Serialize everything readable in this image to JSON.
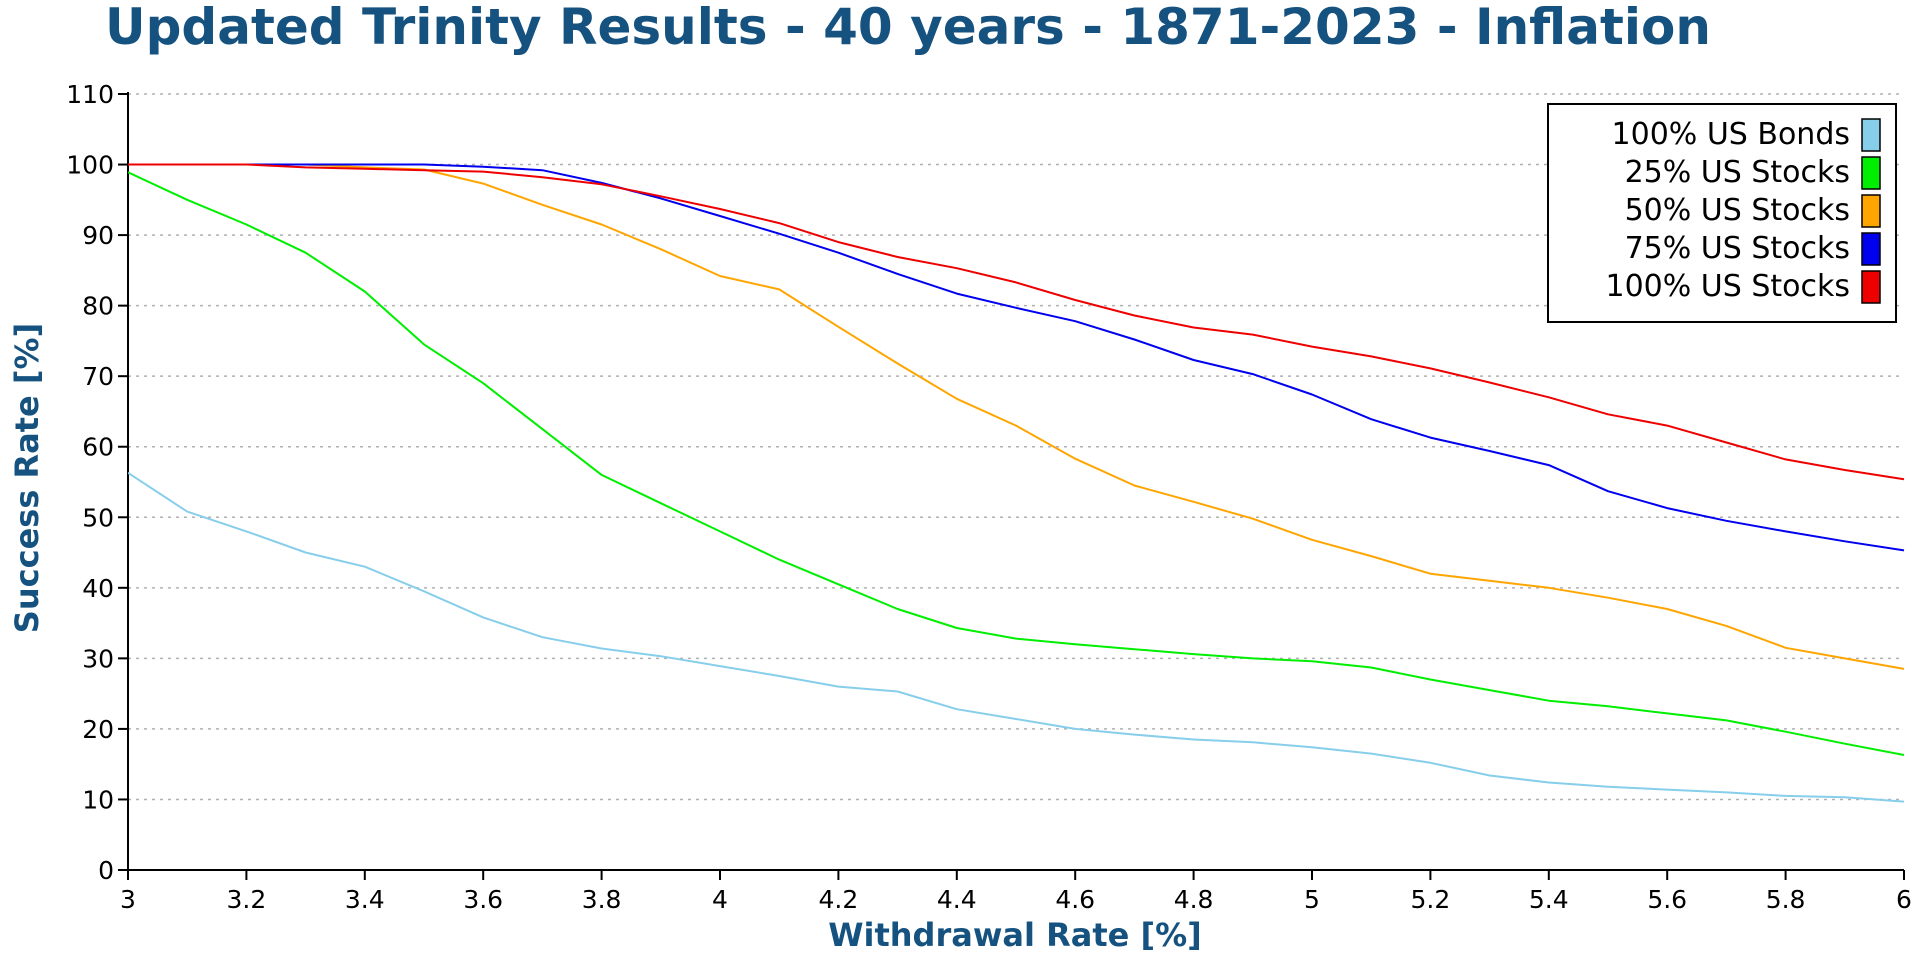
{
  "chart_data": {
    "type": "line",
    "title": "Updated Trinity Results - 40 years - 1871-2023 - Inflation",
    "xlabel": "Withdrawal Rate [%]",
    "ylabel": "Success Rate [%]",
    "xlim": [
      3,
      6
    ],
    "ylim": [
      0,
      110
    ],
    "xticks": [
      "3",
      "3.2",
      "3.4",
      "3.6",
      "3.8",
      "4",
      "4.2",
      "4.4",
      "4.6",
      "4.8",
      "5",
      "5.2",
      "5.4",
      "5.6",
      "5.8",
      "6"
    ],
    "yticks": [
      "0",
      "10",
      "20",
      "30",
      "40",
      "50",
      "60",
      "70",
      "80",
      "90",
      "100",
      "110"
    ],
    "grid": "horizontal-dotted",
    "legend_position": "top-right",
    "x": [
      3.0,
      3.1,
      3.2,
      3.3,
      3.4,
      3.5,
      3.6,
      3.7,
      3.8,
      3.9,
      4.0,
      4.1,
      4.2,
      4.3,
      4.4,
      4.5,
      4.6,
      4.7,
      4.8,
      4.9,
      5.0,
      5.1,
      5.2,
      5.3,
      5.4,
      5.5,
      5.6,
      5.7,
      5.8,
      5.9,
      6.0
    ],
    "series": [
      {
        "name": "100% US Bonds",
        "color": "#87ceeb",
        "values": [
          56.3,
          50.8,
          48.0,
          45.0,
          43.0,
          39.5,
          35.8,
          33.0,
          31.4,
          30.3,
          28.9,
          27.5,
          26.0,
          25.3,
          22.8,
          21.4,
          20.0,
          19.2,
          18.5,
          18.1,
          17.4,
          16.5,
          15.2,
          13.4,
          12.4,
          11.8,
          11.4,
          11.0,
          10.5,
          10.3,
          9.7
        ]
      },
      {
        "name": "25% US Stocks",
        "color": "#00ee00",
        "values": [
          98.9,
          95.0,
          91.5,
          87.5,
          82.0,
          74.5,
          69.0,
          62.5,
          56.0,
          52.0,
          48.0,
          44.0,
          40.5,
          37.0,
          34.3,
          32.8,
          32.0,
          31.3,
          30.6,
          30.0,
          29.6,
          28.7,
          27.0,
          25.5,
          24.0,
          23.2,
          22.2,
          21.2,
          19.6,
          17.9,
          16.3
        ]
      },
      {
        "name": "50% US Stocks",
        "color": "#ffa500",
        "values": [
          100,
          100,
          100,
          100,
          99.6,
          99.3,
          97.3,
          94.3,
          91.5,
          88.0,
          84.2,
          82.3,
          77.0,
          71.8,
          66.8,
          63.0,
          58.3,
          54.5,
          52.2,
          49.8,
          46.8,
          44.5,
          42.0,
          41.0,
          40.0,
          38.6,
          37.0,
          34.6,
          31.5,
          30.0,
          28.5
        ]
      },
      {
        "name": "75% US Stocks",
        "color": "#0000ee",
        "values": [
          100,
          100,
          100,
          100,
          100,
          100,
          99.7,
          99.2,
          97.4,
          95.2,
          92.7,
          90.2,
          87.5,
          84.5,
          81.7,
          79.7,
          77.8,
          75.2,
          72.3,
          70.3,
          67.4,
          63.9,
          61.3,
          59.4,
          57.4,
          53.7,
          51.3,
          49.5,
          48.0,
          46.6,
          45.3
        ]
      },
      {
        "name": "100% US Stocks",
        "color": "#ee0000",
        "values": [
          100,
          100,
          100,
          99.6,
          99.4,
          99.2,
          99.0,
          98.2,
          97.2,
          95.5,
          93.7,
          91.7,
          89.0,
          86.9,
          85.3,
          83.3,
          80.8,
          78.6,
          76.9,
          75.9,
          74.2,
          72.8,
          71.1,
          69.1,
          67.0,
          64.6,
          63.0,
          60.6,
          58.2,
          56.7,
          55.4
        ]
      }
    ]
  }
}
